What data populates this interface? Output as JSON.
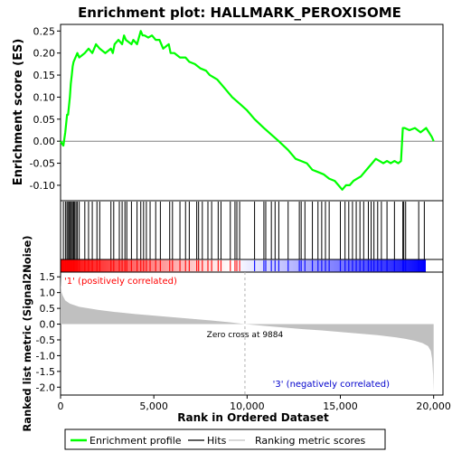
{
  "chart_data": {
    "type": "line",
    "title": "Enrichment plot: HALLMARK_PEROXISOME",
    "es_panel": {
      "ylabel": "Enrichment score (ES)",
      "ylim": [
        -0.135,
        0.265
      ],
      "yticks": [
        -0.1,
        -0.05,
        0.0,
        0.05,
        0.1,
        0.15,
        0.2,
        0.25
      ],
      "ytick_labels": [
        "-0.10",
        "-0.05",
        "0.00",
        "0.05",
        "0.10",
        "0.15",
        "0.20",
        "0.25"
      ],
      "series": {
        "name": "Enrichment profile",
        "color": "#00ff00",
        "x": [
          0,
          150,
          250,
          350,
          400,
          500,
          550,
          600,
          650,
          700,
          800,
          900,
          1000,
          1300,
          1500,
          1700,
          1900,
          2100,
          2400,
          2700,
          2800,
          2900,
          3100,
          3300,
          3400,
          3500,
          3800,
          3900,
          4100,
          4300,
          4400,
          4500,
          4700,
          4900,
          5100,
          5300,
          5500,
          5800,
          5900,
          6100,
          6400,
          6700,
          6900,
          7200,
          7500,
          7800,
          8000,
          8400,
          8800,
          9200,
          9600,
          10000,
          10400,
          10900,
          11300,
          11700,
          12200,
          12600,
          12900,
          13200,
          13500,
          13800,
          14100,
          14400,
          14700,
          14900,
          15100,
          15300,
          15500,
          15700,
          15900,
          16100,
          16300,
          16500,
          16700,
          16900,
          17100,
          17300,
          17500,
          17700,
          17900,
          18100,
          18250,
          18350,
          18450,
          18700,
          19000,
          19300,
          19600,
          19900,
          20000
        ],
        "y": [
          0.0,
          -0.01,
          0.02,
          0.06,
          0.06,
          0.1,
          0.13,
          0.15,
          0.17,
          0.18,
          0.19,
          0.2,
          0.19,
          0.2,
          0.21,
          0.2,
          0.22,
          0.21,
          0.2,
          0.21,
          0.2,
          0.22,
          0.23,
          0.22,
          0.24,
          0.23,
          0.22,
          0.23,
          0.22,
          0.25,
          0.24,
          0.24,
          0.235,
          0.24,
          0.23,
          0.23,
          0.21,
          0.22,
          0.2,
          0.2,
          0.19,
          0.19,
          0.18,
          0.175,
          0.165,
          0.16,
          0.15,
          0.14,
          0.12,
          0.1,
          0.085,
          0.07,
          0.05,
          0.03,
          0.015,
          0.0,
          -0.02,
          -0.04,
          -0.045,
          -0.05,
          -0.065,
          -0.07,
          -0.075,
          -0.085,
          -0.09,
          -0.1,
          -0.11,
          -0.1,
          -0.1,
          -0.09,
          -0.085,
          -0.08,
          -0.07,
          -0.06,
          -0.05,
          -0.04,
          -0.045,
          -0.05,
          -0.045,
          -0.05,
          -0.045,
          -0.05,
          -0.045,
          0.03,
          0.03,
          0.025,
          0.03,
          0.02,
          0.03,
          0.01,
          0.0
        ]
      }
    },
    "hits_panel": {
      "series_name": "Hits",
      "hits": [
        150,
        260,
        340,
        400,
        470,
        520,
        580,
        640,
        700,
        760,
        830,
        900,
        1000,
        1300,
        1500,
        1700,
        1950,
        2100,
        2700,
        2850,
        3150,
        3300,
        3450,
        3550,
        3800,
        4100,
        4300,
        4450,
        4600,
        4800,
        5100,
        5350,
        5850,
        6000,
        6400,
        6700,
        6900,
        7300,
        7400,
        7600,
        7900,
        8100,
        8450,
        8600,
        9100,
        9350,
        9450,
        9600,
        10400,
        10900,
        11000,
        11300,
        11500,
        11700,
        12200,
        12800,
        12900,
        13100,
        13500,
        13800,
        14000,
        14200,
        14400,
        15000,
        15250,
        15450,
        15650,
        15850,
        16050,
        16250,
        16500,
        16650,
        16800,
        17000,
        17200,
        17500,
        17900,
        18350,
        18400,
        18500,
        19200,
        19500
      ]
    },
    "ranking_panel": {
      "series_name": "Ranking metric scores",
      "ylabel": "Ranked list metric (Signal2Noise)",
      "ylim": [
        -2.25,
        1.65
      ],
      "yticks": [
        -2.0,
        -1.5,
        -1.0,
        -0.5,
        0.0,
        0.5,
        1.0,
        1.5
      ],
      "ytick_labels": [
        "-2.0",
        "-1.5",
        "-1.0",
        "-0.5",
        "0.0",
        "0.5",
        "1.0",
        "1.5"
      ],
      "x": [
        0,
        20,
        60,
        120,
        250,
        500,
        1000,
        2000,
        3000,
        4000,
        5000,
        6000,
        7000,
        8000,
        9000,
        9884,
        11000,
        12000,
        13000,
        14000,
        15000,
        16000,
        17000,
        18000,
        18500,
        19000,
        19400,
        19700,
        19850,
        19920,
        19970,
        20000
      ],
      "y": [
        1.55,
        1.2,
        1.0,
        0.9,
        0.75,
        0.65,
        0.55,
        0.45,
        0.38,
        0.32,
        0.27,
        0.22,
        0.17,
        0.12,
        0.06,
        0.0,
        -0.06,
        -0.11,
        -0.16,
        -0.2,
        -0.25,
        -0.3,
        -0.35,
        -0.42,
        -0.47,
        -0.53,
        -0.6,
        -0.7,
        -0.85,
        -1.1,
        -1.6,
        -2.15
      ],
      "zero_cross_label": "Zero cross at 9884",
      "zero_cross_x": 9884,
      "pos_label": "'1' (positively correlated)",
      "neg_label": "'3' (negatively correlated)"
    },
    "xaxis": {
      "xlabel": "Rank in Ordered Dataset",
      "xlim": [
        0,
        20500
      ],
      "xticks": [
        0,
        5000,
        10000,
        15000,
        20000
      ],
      "xtick_labels": [
        "0",
        "5,000",
        "10,000",
        "15,000",
        "20,000"
      ]
    },
    "legend": {
      "placement": "bottom",
      "entries": [
        "Enrichment profile",
        "Hits",
        "Ranking metric scores"
      ]
    },
    "colors": {
      "profile": "#00ff00",
      "hits": "#000000",
      "ranking": "#c0c0c0",
      "pos_label": "#ff0000",
      "neg_label": "#0000ff",
      "positive_band": "#ff0000",
      "negative_band": "#0000ff"
    }
  }
}
